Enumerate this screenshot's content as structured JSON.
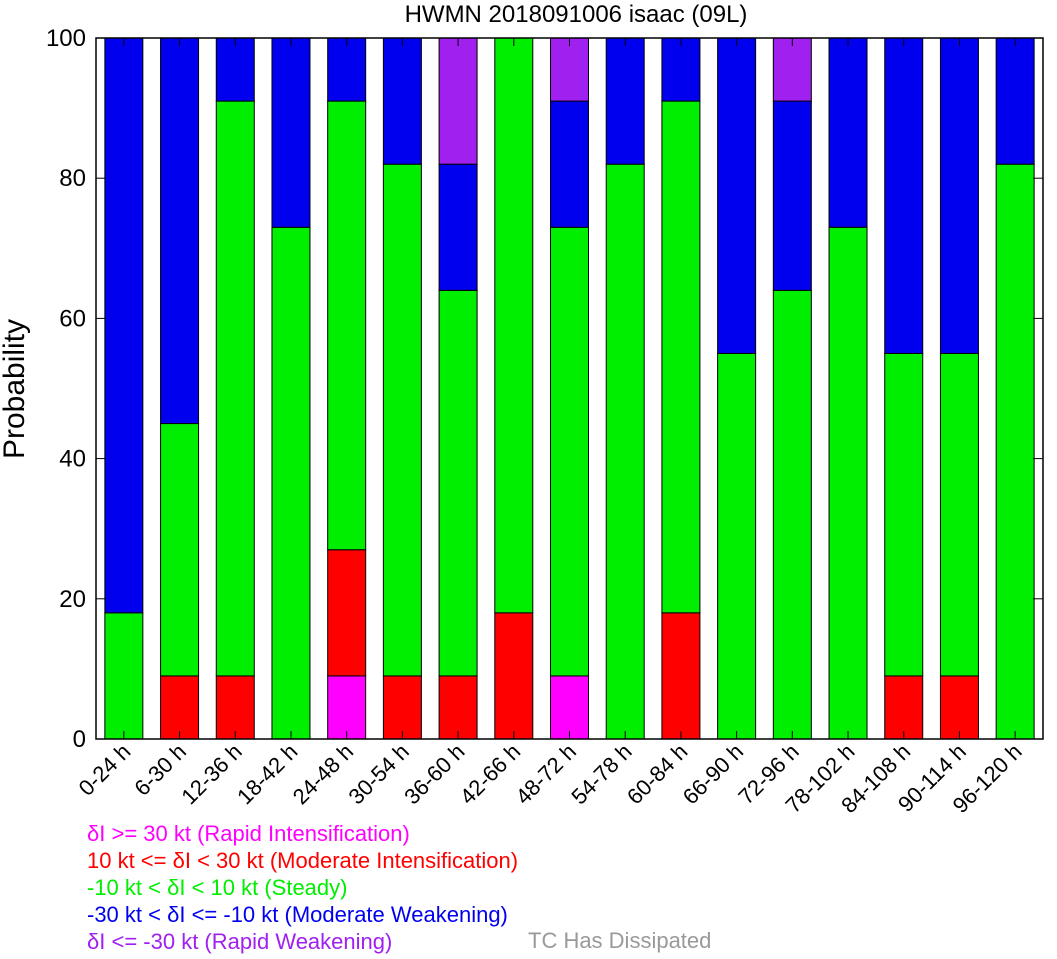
{
  "chart_data": {
    "type": "bar",
    "stacked": true,
    "title": "HWMN 2018091006 isaac (09L)",
    "xlabel": "",
    "ylabel": "Probability",
    "ylim": [
      0,
      100
    ],
    "yticks": [
      0,
      20,
      40,
      60,
      80,
      100
    ],
    "grid": false,
    "categories": [
      "0-24 h",
      "6-30 h",
      "12-36 h",
      "18-42 h",
      "24-48 h",
      "30-54 h",
      "36-60 h",
      "42-66 h",
      "48-72 h",
      "54-78 h",
      "60-84 h",
      "66-90 h",
      "72-96 h",
      "78-102 h",
      "84-108 h",
      "90-114 h",
      "96-120 h"
    ],
    "series": [
      {
        "color": "#ff00ff",
        "values": [
          0,
          0,
          0,
          0,
          9,
          0,
          0,
          0,
          9,
          0,
          0,
          0,
          0,
          0,
          0,
          0,
          0
        ]
      },
      {
        "color": "#ff0000",
        "values": [
          0,
          9,
          9,
          0,
          18,
          9,
          9,
          18,
          0,
          0,
          18,
          0,
          0,
          0,
          9,
          9,
          0
        ]
      },
      {
        "color": "#00ee00",
        "values": [
          18,
          36,
          82,
          73,
          64,
          73,
          55,
          82,
          64,
          82,
          73,
          55,
          64,
          73,
          46,
          46,
          82
        ]
      },
      {
        "color": "#0000ee",
        "values": [
          82,
          55,
          9,
          27,
          9,
          18,
          18,
          0,
          18,
          18,
          9,
          45,
          27,
          27,
          45,
          45,
          18
        ]
      },
      {
        "color": "#a020f0",
        "values": [
          0,
          0,
          0,
          0,
          0,
          0,
          18,
          0,
          9,
          0,
          0,
          0,
          9,
          0,
          0,
          0,
          0
        ]
      }
    ]
  },
  "legend": {
    "rapid_intensification": {
      "text": "δI >= 30 kt (Rapid Intensification)",
      "color": "#ff00ff"
    },
    "moderate_intensification": {
      "text": "10 kt <= δI < 30 kt (Moderate Intensification)",
      "color": "#ff0000"
    },
    "steady": {
      "text": "-10 kt < δI < 10 kt (Steady)",
      "color": "#00ee00"
    },
    "moderate_weakening": {
      "text": "-30 kt < δI <= -10 kt (Moderate Weakening)",
      "color": "#0000ee"
    },
    "rapid_weakening": {
      "text": "δI <= -30 kt (Rapid Weakening)",
      "color": "#a020f0"
    },
    "dissipated": {
      "text": "TC Has Dissipated",
      "color": "#999999"
    }
  }
}
